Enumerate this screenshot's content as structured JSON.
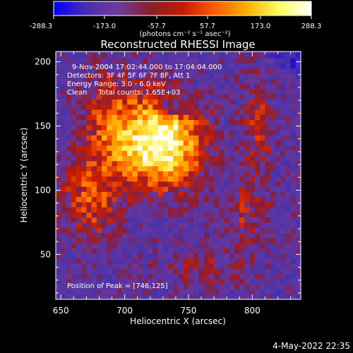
{
  "colorbar": {
    "ticks": [
      "-288.3",
      "-173.0",
      "-57.7",
      "57.7",
      "173.0",
      "288.3"
    ],
    "units": "(photons cm⁻² s⁻¹ asec⁻²)",
    "stops": [
      "#0000ff",
      "#4a2db0",
      "#6e3aa0",
      "#8a1f2a",
      "#c41a00",
      "#ff5a00",
      "#ffb000",
      "#ffff60",
      "#ffffff"
    ]
  },
  "chart_data": {
    "type": "heatmap",
    "title": "Reconstructed RHESSI Image",
    "xlabel": "Heliocentric X (arcsec)",
    "ylabel": "Heliocentric Y (arcsec)",
    "xlim": [
      646,
      838
    ],
    "ylim": [
      15,
      208
    ],
    "xticks": [
      650,
      700,
      750,
      800
    ],
    "yticks": [
      50,
      100,
      150,
      200
    ],
    "zlim": [
      -288.3,
      288.3
    ],
    "annotations": [
      "9-Nov-2004 17:02:44.000 to 17:04:04.000",
      "Detectors: 3F 4F 5F 6F 7F 8F, Att 1",
      "Energy Range: 3.0 - 6.0 keV",
      "Clean     Total counts: 1.65E+03"
    ],
    "peak_label": "Position of Peak = [746,125]",
    "peak": [
      746,
      125
    ]
  },
  "footer": {
    "timestamp": "4-May-2022 22:35"
  }
}
